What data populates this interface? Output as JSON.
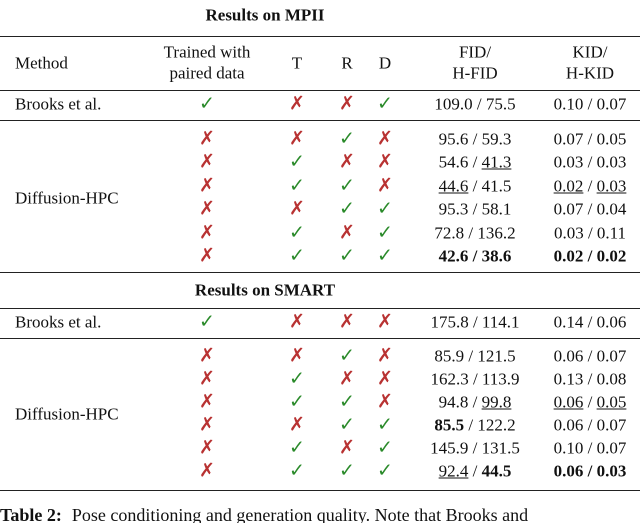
{
  "header": {
    "method": "Method",
    "paired": [
      "Trained with",
      "paired data"
    ],
    "t": "T",
    "r": "R",
    "d": "D",
    "fid": [
      "FID/",
      "H-FID"
    ],
    "kid": [
      "KID/",
      "H-KID"
    ]
  },
  "mark_colors": {
    "✓": "#2a8a2a",
    "✗": "#b83232"
  },
  "sections": [
    {
      "title": "Results on MPII",
      "baseline": {
        "method": "Brooks et al.",
        "marks": [
          "✓",
          "✗",
          "✗",
          "✓"
        ],
        "fid": [
          {
            "t": "109.0"
          },
          {
            "t": " / "
          },
          {
            "t": "75.5"
          }
        ],
        "kid": [
          {
            "t": "0.10"
          },
          {
            "t": " / "
          },
          {
            "t": "0.07"
          }
        ]
      },
      "group": {
        "method": "Diffusion-HPC",
        "rows": [
          {
            "marks": [
              "✗",
              "✗",
              "✓",
              "✗"
            ],
            "fid": [
              {
                "t": "95.6"
              },
              {
                "t": " / "
              },
              {
                "t": "59.3"
              }
            ],
            "kid": [
              {
                "t": "0.07"
              },
              {
                "t": " / "
              },
              {
                "t": "0.05"
              }
            ]
          },
          {
            "marks": [
              "✗",
              "✓",
              "✗",
              "✗"
            ],
            "fid": [
              {
                "t": "54.6"
              },
              {
                "t": " / "
              },
              {
                "t": "41.3",
                "u": true
              }
            ],
            "kid": [
              {
                "t": "0.03"
              },
              {
                "t": " / "
              },
              {
                "t": "0.03"
              }
            ]
          },
          {
            "marks": [
              "✗",
              "✓",
              "✓",
              "✗"
            ],
            "fid": [
              {
                "t": "44.6",
                "u": true
              },
              {
                "t": " / "
              },
              {
                "t": "41.5"
              }
            ],
            "kid": [
              {
                "t": "0.02",
                "u": true
              },
              {
                "t": " / "
              },
              {
                "t": "0.03",
                "u": true
              }
            ]
          },
          {
            "marks": [
              "✗",
              "✗",
              "✓",
              "✓"
            ],
            "fid": [
              {
                "t": "95.3"
              },
              {
                "t": " / "
              },
              {
                "t": "58.1"
              }
            ],
            "kid": [
              {
                "t": "0.07"
              },
              {
                "t": " / "
              },
              {
                "t": "0.04"
              }
            ]
          },
          {
            "marks": [
              "✗",
              "✓",
              "✗",
              "✓"
            ],
            "fid": [
              {
                "t": "72.8"
              },
              {
                "t": " / "
              },
              {
                "t": "136.2"
              }
            ],
            "kid": [
              {
                "t": "0.03"
              },
              {
                "t": " / "
              },
              {
                "t": "0.11"
              }
            ]
          },
          {
            "marks": [
              "✗",
              "✓",
              "✓",
              "✓"
            ],
            "fid": [
              {
                "t": "42.6",
                "b": true
              },
              {
                "t": " / ",
                "b": true
              },
              {
                "t": "38.6",
                "b": true
              }
            ],
            "kid": [
              {
                "t": "0.02",
                "b": true
              },
              {
                "t": " / ",
                "b": true
              },
              {
                "t": "0.02",
                "b": true
              }
            ]
          }
        ]
      }
    },
    {
      "title": "Results on SMART",
      "baseline": {
        "method": "Brooks et al.",
        "marks": [
          "✓",
          "✗",
          "✗",
          "✗"
        ],
        "fid": [
          {
            "t": "175.8"
          },
          {
            "t": " / "
          },
          {
            "t": "114.1"
          }
        ],
        "kid": [
          {
            "t": "0.14"
          },
          {
            "t": " / "
          },
          {
            "t": "0.06"
          }
        ]
      },
      "group": {
        "method": "Diffusion-HPC",
        "rows": [
          {
            "marks": [
              "✗",
              "✗",
              "✓",
              "✗"
            ],
            "fid": [
              {
                "t": "85.9"
              },
              {
                "t": " / "
              },
              {
                "t": "121.5"
              }
            ],
            "kid": [
              {
                "t": "0.06"
              },
              {
                "t": " / "
              },
              {
                "t": "0.07"
              }
            ]
          },
          {
            "marks": [
              "✗",
              "✓",
              "✗",
              "✗"
            ],
            "fid": [
              {
                "t": "162.3"
              },
              {
                "t": " / "
              },
              {
                "t": "113.9"
              }
            ],
            "kid": [
              {
                "t": "0.13"
              },
              {
                "t": " / "
              },
              {
                "t": "0.08"
              }
            ]
          },
          {
            "marks": [
              "✗",
              "✓",
              "✓",
              "✗"
            ],
            "fid": [
              {
                "t": "94.8"
              },
              {
                "t": " / "
              },
              {
                "t": "99.8",
                "u": true
              }
            ],
            "kid": [
              {
                "t": "0.06",
                "u": true
              },
              {
                "t": " / "
              },
              {
                "t": "0.05",
                "u": true
              }
            ]
          },
          {
            "marks": [
              "✗",
              "✗",
              "✓",
              "✓"
            ],
            "fid": [
              {
                "t": "85.5",
                "b": true
              },
              {
                "t": " / "
              },
              {
                "t": "122.2"
              }
            ],
            "kid": [
              {
                "t": "0.06"
              },
              {
                "t": " / "
              },
              {
                "t": "0.07"
              }
            ]
          },
          {
            "marks": [
              "✗",
              "✓",
              "✗",
              "✓"
            ],
            "fid": [
              {
                "t": "145.9"
              },
              {
                "t": " / "
              },
              {
                "t": "131.5"
              }
            ],
            "kid": [
              {
                "t": "0.10"
              },
              {
                "t": " / "
              },
              {
                "t": "0.07"
              }
            ]
          },
          {
            "marks": [
              "✗",
              "✓",
              "✓",
              "✓"
            ],
            "fid": [
              {
                "t": "92.4",
                "u": true
              },
              {
                "t": " / "
              },
              {
                "t": "44.5",
                "b": true
              }
            ],
            "kid": [
              {
                "t": "0.06",
                "b": true
              },
              {
                "t": " / ",
                "b": true
              },
              {
                "t": "0.03",
                "b": true
              }
            ]
          }
        ]
      }
    }
  ],
  "caption": {
    "label": "Table 2:",
    "text": "Pose conditioning and generation quality. Note that Brooks and"
  }
}
